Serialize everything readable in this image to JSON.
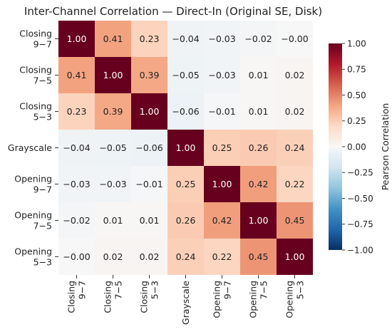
{
  "chart_data": {
    "type": "heatmap",
    "title": "Inter-Channel Correlation — Direct-In (Original SE, Disk)",
    "row_labels": [
      [
        "Closing",
        "9−7"
      ],
      [
        "Closing",
        "7−5"
      ],
      [
        "Closing",
        "5−3"
      ],
      [
        "Grayscale"
      ],
      [
        "Opening",
        "9−7"
      ],
      [
        "Opening",
        "7−5"
      ],
      [
        "Opening",
        "5−3"
      ]
    ],
    "col_labels": [
      [
        "Closing",
        "9−7"
      ],
      [
        "Closing",
        "7−5"
      ],
      [
        "Closing",
        "5−3"
      ],
      [
        "Grayscale"
      ],
      [
        "Opening",
        "9−7"
      ],
      [
        "Opening",
        "7−5"
      ],
      [
        "Opening",
        "5−3"
      ]
    ],
    "values": [
      [
        1.0,
        0.41,
        0.23,
        -0.04,
        -0.03,
        -0.02,
        -0.0
      ],
      [
        0.41,
        1.0,
        0.39,
        -0.05,
        -0.03,
        0.01,
        0.02
      ],
      [
        0.23,
        0.39,
        1.0,
        -0.06,
        -0.01,
        0.01,
        0.02
      ],
      [
        -0.04,
        -0.05,
        -0.06,
        1.0,
        0.25,
        0.26,
        0.24
      ],
      [
        -0.03,
        -0.03,
        -0.01,
        0.25,
        1.0,
        0.42,
        0.22
      ],
      [
        -0.02,
        0.01,
        0.01,
        0.26,
        0.42,
        1.0,
        0.45
      ],
      [
        -0.0,
        0.02,
        0.02,
        0.24,
        0.22,
        0.45,
        1.0
      ]
    ],
    "colorbar": {
      "label": "Pearson Correlation",
      "range": [
        -1.0,
        1.0
      ],
      "ticks": [
        "1.00",
        "0.75",
        "0.50",
        "0.25",
        "0.00",
        "−0.25",
        "−0.50",
        "−0.75",
        "−1.00"
      ],
      "colormap": "RdBu_r"
    }
  }
}
